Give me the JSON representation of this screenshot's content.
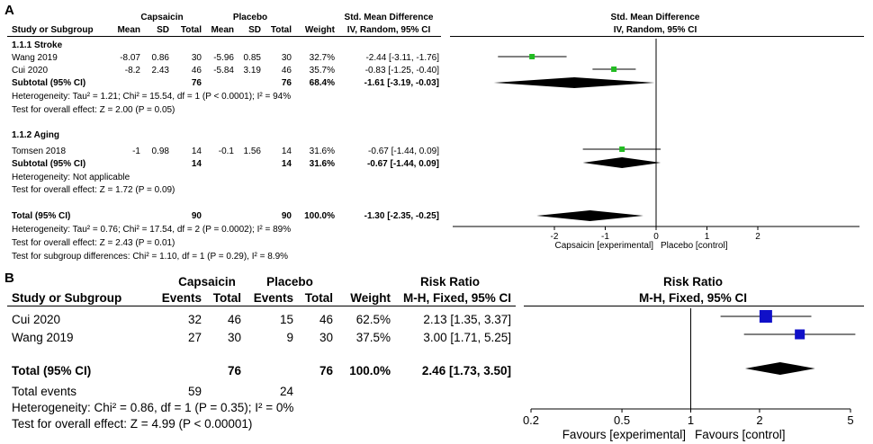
{
  "panelA": {
    "letter": "A",
    "head": {
      "group1": "Capsaicin",
      "group2": "Placebo",
      "effect_title": "Std. Mean Difference",
      "effect_sub": "IV, Random, 95% CI",
      "plot_title": "Std. Mean Difference",
      "plot_sub": "IV, Random, 95% CI",
      "study": "Study or Subgroup",
      "mean": "Mean",
      "sd": "SD",
      "total": "Total",
      "weight": "Weight"
    },
    "sub1": {
      "label": "1.1.1 Stroke",
      "rows": [
        {
          "study": "Wang 2019",
          "m1": "-8.07",
          "sd1": "0.86",
          "n1": "30",
          "m2": "-5.96",
          "sd2": "0.85",
          "n2": "30",
          "w": "32.7%",
          "ci": "-2.44 [-3.11, -1.76]"
        },
        {
          "study": "Cui 2020",
          "m1": "-8.2",
          "sd1": "2.43",
          "n1": "46",
          "m2": "-5.84",
          "sd2": "3.19",
          "n2": "46",
          "w": "35.7%",
          "ci": "-0.83 [-1.25, -0.40]"
        }
      ],
      "subtotal": {
        "label": "Subtotal (95% CI)",
        "n1": "76",
        "n2": "76",
        "w": "68.4%",
        "ci": "-1.61 [-3.19, -0.03]"
      },
      "het": "Heterogeneity: Tau² = 1.21; Chi² = 15.54, df = 1 (P < 0.0001); I² = 94%",
      "test": "Test for overall effect: Z = 2.00 (P = 0.05)"
    },
    "sub2": {
      "label": "1.1.2 Aging",
      "rows": [
        {
          "study": "Tomsen 2018",
          "m1": "-1",
          "sd1": "0.98",
          "n1": "14",
          "m2": "-0.1",
          "sd2": "1.56",
          "n2": "14",
          "w": "31.6%",
          "ci": "-0.67 [-1.44, 0.09]"
        }
      ],
      "subtotal": {
        "label": "Subtotal (95% CI)",
        "n1": "14",
        "n2": "14",
        "w": "31.6%",
        "ci": "-0.67 [-1.44, 0.09]"
      },
      "het": "Heterogeneity: Not applicable",
      "test": "Test for overall effect: Z = 1.72 (P = 0.09)"
    },
    "total": {
      "label": "Total (95% CI)",
      "n1": "90",
      "n2": "90",
      "w": "100.0%",
      "ci": "-1.30 [-2.35, -0.25]"
    },
    "total_het": "Heterogeneity: Tau² = 0.76; Chi² = 17.54, df = 2 (P = 0.0002); I² = 89%",
    "total_test": "Test for overall effect: Z = 2.43 (P = 0.01)",
    "subgroup_test": "Test for subgroup differences: Chi² = 1.10, df = 1 (P = 0.29), I² = 8.9%",
    "favours_left": "Capsaicin [experimental]",
    "favours_right": "Placebo [control]"
  },
  "panelB": {
    "letter": "B",
    "head": {
      "group1": "Capsaicin",
      "group2": "Placebo",
      "effect_title": "Risk Ratio",
      "effect_sub": "M-H, Fixed, 95% CI",
      "plot_title": "Risk Ratio",
      "plot_sub": "M-H, Fixed, 95% CI",
      "study": "Study or Subgroup",
      "events": "Events",
      "total": "Total",
      "weight": "Weight"
    },
    "rows": [
      {
        "study": "Cui 2020",
        "e1": "32",
        "n1": "46",
        "e2": "15",
        "n2": "46",
        "w": "62.5%",
        "ci": "2.13 [1.35, 3.37]"
      },
      {
        "study": "Wang 2019",
        "e1": "27",
        "n1": "30",
        "e2": "9",
        "n2": "30",
        "w": "37.5%",
        "ci": "3.00 [1.71, 5.25]"
      }
    ],
    "total": {
      "label": "Total (95% CI)",
      "n1": "76",
      "n2": "76",
      "w": "100.0%",
      "ci": "2.46 [1.73, 3.50]"
    },
    "events": {
      "label": "Total events",
      "e1": "59",
      "e2": "24"
    },
    "het": "Heterogeneity: Chi² = 0.86, df = 1 (P = 0.35); I² = 0%",
    "test": "Test for overall effect: Z = 4.99 (P < 0.00001)",
    "favours_left": "Favours [experimental]",
    "favours_right": "Favours [control]"
  },
  "chart_data": [
    {
      "type": "forest",
      "title": "Std. Mean Difference, IV, Random, 95% CI",
      "scale": "linear",
      "xlim": [
        -4,
        4
      ],
      "ticks": [
        "-2",
        "-1",
        "0",
        "1",
        "2"
      ],
      "tick_values": [
        -2,
        -1,
        0,
        1,
        2
      ],
      "null_value": 0,
      "studies": [
        {
          "name": "Wang 2019",
          "est": -2.44,
          "lo": -3.11,
          "hi": -1.76,
          "weight": 32.7
        },
        {
          "name": "Cui 2020",
          "est": -0.83,
          "lo": -1.25,
          "hi": -0.4,
          "weight": 35.7
        },
        {
          "name": "Tomsen 2018",
          "est": -0.67,
          "lo": -1.44,
          "hi": 0.09,
          "weight": 31.6
        }
      ],
      "diamonds": [
        {
          "name": "Subtotal Stroke",
          "est": -1.61,
          "lo": -3.19,
          "hi": -0.03
        },
        {
          "name": "Subtotal Aging",
          "est": -0.67,
          "lo": -1.44,
          "hi": 0.09
        },
        {
          "name": "Total",
          "est": -1.3,
          "lo": -2.35,
          "hi": -0.25
        }
      ],
      "marker_color": "#22bb22"
    },
    {
      "type": "forest",
      "title": "Risk Ratio, M-H, Fixed, 95% CI",
      "scale": "log",
      "xlim": [
        0.2,
        5
      ],
      "ticks": [
        "0.2",
        "0.5",
        "1",
        "2",
        "5"
      ],
      "tick_values": [
        0.2,
        0.5,
        1,
        2,
        5
      ],
      "null_value": 1,
      "studies": [
        {
          "name": "Cui 2020",
          "est": 2.13,
          "lo": 1.35,
          "hi": 3.37,
          "weight": 62.5
        },
        {
          "name": "Wang 2019",
          "est": 3.0,
          "lo": 1.71,
          "hi": 5.25,
          "weight": 37.5
        }
      ],
      "diamonds": [
        {
          "name": "Total",
          "est": 2.46,
          "lo": 1.73,
          "hi": 3.5
        }
      ],
      "marker_color": "#1010c8"
    }
  ]
}
